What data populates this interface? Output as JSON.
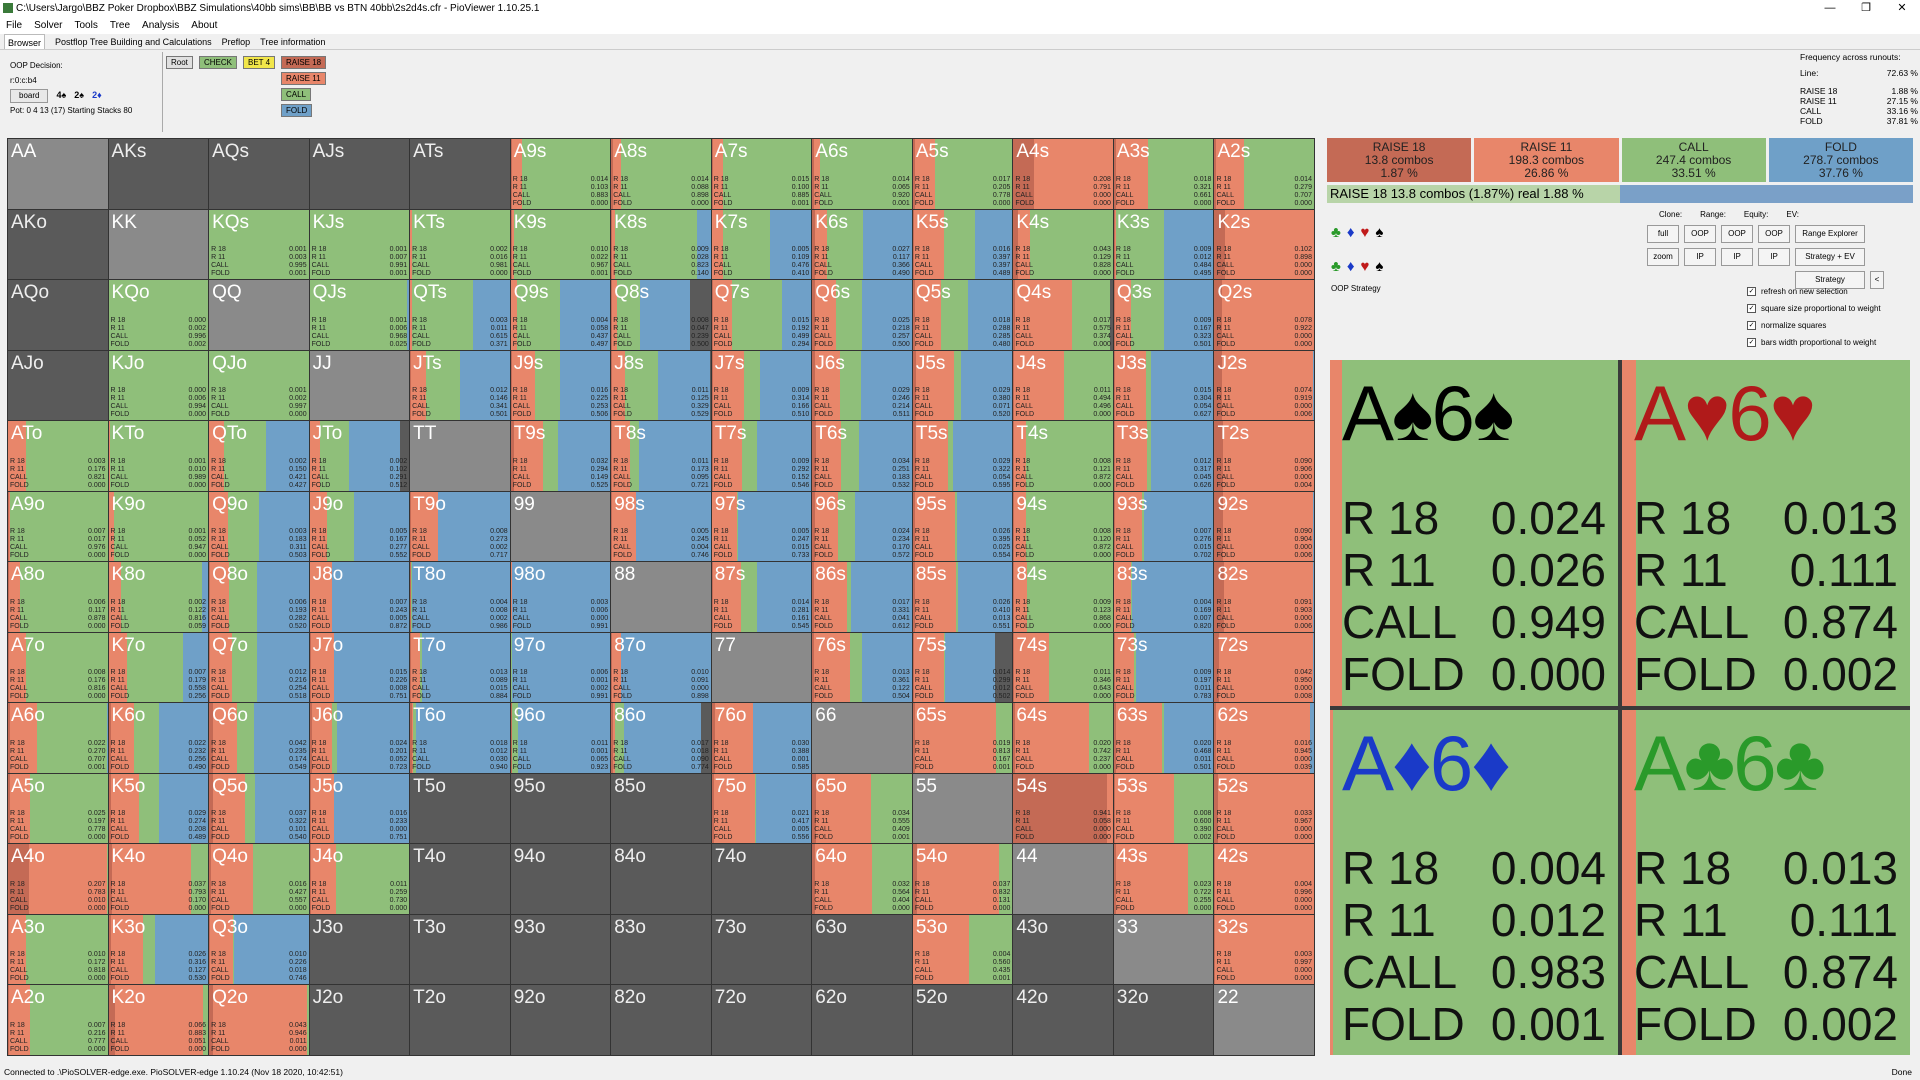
{
  "window": {
    "title": "C:\\Users\\Jargo\\BBZ Poker Dropbox\\BBZ Simulations\\40bb sims\\BB\\BB vs BTN 40bb\\2s2d4s.cfr - PioViewer 1.10.25.1",
    "buttons": [
      "—",
      "❐",
      "✕"
    ]
  },
  "menu": [
    "File",
    "Solver",
    "Tools",
    "Tree",
    "Analysis",
    "About"
  ],
  "tabs": [
    "Browser",
    "Postflop Tree Building and Calculations",
    "Preflop",
    "Tree information"
  ],
  "info": {
    "decision": "OOP Decision:",
    "line": "r:0:c:b4",
    "board_button": "board",
    "board_cards": [
      "4♠",
      "2♠",
      "2♦"
    ],
    "pot": "Pot: 0 4 13 (17) Starting Stacks 80"
  },
  "tree": {
    "root": "Root",
    "check": "CHECK",
    "bet": "BET 4",
    "raise18": "RAISE 18",
    "raise11": "RAISE 11",
    "call": "CALL",
    "fold": "FOLD"
  },
  "frequency": {
    "title": "Frequency across runouts:",
    "rows": [
      [
        "Line:",
        "72.63 %"
      ],
      [
        "RAISE 18",
        "1.88 %"
      ],
      [
        "RAISE 11",
        "27.15 %"
      ],
      [
        "CALL",
        "33.16 %"
      ],
      [
        "FOLD",
        "37.81 %"
      ]
    ]
  },
  "colors": {
    "raise18": "#c46a55",
    "raise11": "#e8866a",
    "call": "#8fbf7a",
    "fold": "#6fa0c8",
    "empty": "#5a5a5a",
    "pair": "#8a8a8a"
  },
  "combos": [
    {
      "name": "RAISE 18",
      "count": "13.8 combos",
      "pct": "1.87 %"
    },
    {
      "name": "RAISE 11",
      "count": "198.3 combos",
      "pct": "26.86 %"
    },
    {
      "name": "CALL",
      "count": "247.4 combos",
      "pct": "33.51 %"
    },
    {
      "name": "FOLD",
      "count": "278.7 combos",
      "pct": "37.76 %"
    }
  ],
  "selected_line": "RAISE 18   13.8 combos (1.87%) real  1.88 %",
  "suit_rows": [
    [
      "♣",
      "♦",
      "♥",
      "♠"
    ],
    [
      "♣",
      "♦",
      "♥",
      "♠"
    ]
  ],
  "controls": {
    "clone": "Clone:",
    "range": "Range:",
    "equity": "Equity:",
    "ev": "EV:",
    "buttons": [
      "full",
      "OOP",
      "OOP",
      "OOP",
      "Range Explorer",
      "zoom",
      "IP",
      "IP",
      "IP",
      "Strategy + EV",
      "Strategy",
      "<"
    ]
  },
  "oop_strategy": "OOP Strategy",
  "checks": [
    "refresh on new selection",
    "square size proportional to weight",
    "normalize squares",
    "bars width proportional to weight"
  ],
  "bigcards": [
    {
      "hand": "A♠6♠",
      "color": "#000000",
      "r18": "0.024",
      "r11": "0.026",
      "call": "0.949",
      "fold": "0.000"
    },
    {
      "hand": "A♥6♥",
      "color": "#b01a1a",
      "r18": "0.013",
      "r11": "0.111",
      "call": "0.874",
      "fold": "0.002"
    },
    {
      "hand": "A♦6♦",
      "color": "#1a3ac8",
      "r18": "0.004",
      "r11": "0.012",
      "call": "0.983",
      "fold": "0.001"
    },
    {
      "hand": "A♣6♣",
      "color": "#2a9a2a",
      "r18": "0.013",
      "r11": "0.111",
      "call": "0.874",
      "fold": "0.002"
    }
  ],
  "action_labels": [
    "R 18",
    "R 11",
    "CALL",
    "FOLD"
  ],
  "grid": [
    [
      "AA",
      "AKs",
      "AQs",
      "AJs",
      "ATs",
      "A9s",
      "A8s",
      "A7s",
      "A6s",
      "A5s",
      "A4s",
      "A3s",
      "A2s"
    ],
    [
      "AKo",
      "KK",
      "KQs",
      "KJs",
      "KTs",
      "K9s",
      "K8s",
      "K7s",
      "K6s",
      "K5s",
      "K4s",
      "K3s",
      "K2s"
    ],
    [
      "AQo",
      "KQo",
      "QQ",
      "QJs",
      "QTs",
      "Q9s",
      "Q8s",
      "Q7s",
      "Q6s",
      "Q5s",
      "Q4s",
      "Q3s",
      "Q2s"
    ],
    [
      "AJo",
      "KJo",
      "QJo",
      "JJ",
      "JTs",
      "J9s",
      "J8s",
      "J7s",
      "J6s",
      "J5s",
      "J4s",
      "J3s",
      "J2s"
    ],
    [
      "ATo",
      "KTo",
      "QTo",
      "JTo",
      "TT",
      "T9s",
      "T8s",
      "T7s",
      "T6s",
      "T5s",
      "T4s",
      "T3s",
      "T2s"
    ],
    [
      "A9o",
      "K9o",
      "Q9o",
      "J9o",
      "T9o",
      "99",
      "98s",
      "97s",
      "96s",
      "95s",
      "94s",
      "93s",
      "92s"
    ],
    [
      "A8o",
      "K8o",
      "Q8o",
      "J8o",
      "T8o",
      "98o",
      "88",
      "87s",
      "86s",
      "85s",
      "84s",
      "83s",
      "82s"
    ],
    [
      "A7o",
      "K7o",
      "Q7o",
      "J7o",
      "T7o",
      "97o",
      "87o",
      "77",
      "76s",
      "75s",
      "74s",
      "73s",
      "72s"
    ],
    [
      "A6o",
      "K6o",
      "Q6o",
      "J6o",
      "T6o",
      "96o",
      "86o",
      "76o",
      "66",
      "65s",
      "64s",
      "63s",
      "62s"
    ],
    [
      "A5o",
      "K5o",
      "Q5o",
      "J5o",
      "T5o",
      "95o",
      "85o",
      "75o",
      "65o",
      "55",
      "54s",
      "53s",
      "52s"
    ],
    [
      "A4o",
      "K4o",
      "Q4o",
      "J4o",
      "T4o",
      "94o",
      "84o",
      "74o",
      "64o",
      "54o",
      "44",
      "43s",
      "42s"
    ],
    [
      "A3o",
      "K3o",
      "Q3o",
      "J3o",
      "T3o",
      "93o",
      "83o",
      "73o",
      "63o",
      "53o",
      "43o",
      "33",
      "32s"
    ],
    [
      "A2o",
      "K2o",
      "Q2o",
      "J2o",
      "T2o",
      "92o",
      "82o",
      "72o",
      "62o",
      "52o",
      "42o",
      "32o",
      "22"
    ]
  ],
  "cells": {
    "A9s": [
      0.014,
      0.103,
      0.883,
      0.0
    ],
    "A8s": [
      0.014,
      0.088,
      0.898,
      0.0
    ],
    "A7s": [
      0.015,
      0.1,
      0.885,
      0.001
    ],
    "A6s": [
      0.014,
      0.065,
      0.92,
      0.001
    ],
    "A5s": [
      0.017,
      0.205,
      0.778,
      0.0
    ],
    "A4s": [
      0.208,
      0.791,
      0.0,
      0.0
    ],
    "A3s": [
      0.018,
      0.321,
      0.661,
      0.0
    ],
    "A2s": [
      0.014,
      0.279,
      0.707,
      0.0
    ],
    "KQs": [
      0.001,
      0.003,
      0.995,
      0.001
    ],
    "KJs": [
      0.001,
      0.007,
      0.991,
      0.001
    ],
    "KTs": [
      0.002,
      0.016,
      0.981,
      0.0
    ],
    "K9s": [
      0.01,
      0.022,
      0.967,
      0.001
    ],
    "K8s": [
      0.009,
      0.028,
      0.823,
      0.14
    ],
    "K7s": [
      0.005,
      0.109,
      0.476,
      0.41
    ],
    "K6s": [
      0.027,
      0.117,
      0.366,
      0.49
    ],
    "K5s": [
      0.016,
      0.397,
      0.397,
      0.489
    ],
    "K4s": [
      0.043,
      0.129,
      0.828,
      0.0
    ],
    "K3s": [
      0.009,
      0.012,
      0.484,
      0.495
    ],
    "K2s": [
      0.102,
      0.898,
      0.0,
      0.0
    ],
    "KQo": [
      0.0,
      0.002,
      0.996,
      0.002
    ],
    "QJs": [
      0.001,
      0.006,
      0.968,
      0.025
    ],
    "QTs": [
      0.003,
      0.011,
      0.615,
      0.371
    ],
    "Q9s": [
      0.004,
      0.058,
      0.437,
      0.497
    ],
    "Q8s": [
      0.008,
      0.047,
      0.239,
      0.5
    ],
    "Q7s": [
      0.015,
      0.192,
      0.499,
      0.294
    ],
    "Q6s": [
      0.025,
      0.218,
      0.257,
      0.5
    ],
    "Q5s": [
      0.018,
      0.288,
      0.285,
      0.48
    ],
    "Q4s": [
      0.017,
      0.575,
      0.374,
      0.0
    ],
    "Q3s": [
      0.009,
      0.167,
      0.323,
      0.501
    ],
    "Q2s": [
      0.078,
      0.922,
      0.0,
      0.0
    ],
    "KJo": [
      0.0,
      0.006,
      0.994,
      0.0
    ],
    "QJo": [
      0.001,
      0.002,
      0.997,
      0.0
    ],
    "JTs": [
      0.012,
      0.146,
      0.341,
      0.501
    ],
    "J9s": [
      0.016,
      0.225,
      0.253,
      0.506
    ],
    "J8s": [
      0.011,
      0.125,
      0.329,
      0.529
    ],
    "J7s": [
      0.009,
      0.314,
      0.166,
      0.51
    ],
    "J6s": [
      0.029,
      0.246,
      0.214,
      0.511
    ],
    "J5s": [
      0.029,
      0.38,
      0.071,
      0.52
    ],
    "J4s": [
      0.011,
      0.494,
      0.496,
      0.0
    ],
    "J3s": [
      0.015,
      0.304,
      0.054,
      0.627
    ],
    "J2s": [
      0.074,
      0.919,
      0.0,
      0.006
    ],
    "ATo": [
      0.003,
      0.176,
      0.821,
      0.0
    ],
    "KTo": [
      0.001,
      0.01,
      0.989,
      0.0
    ],
    "QTo": [
      0.002,
      0.15,
      0.421,
      0.427
    ],
    "JTo": [
      0.002,
      0.102,
      0.291,
      0.512
    ],
    "T9s": [
      0.032,
      0.294,
      0.149,
      0.525
    ],
    "T8s": [
      0.011,
      0.173,
      0.095,
      0.721
    ],
    "T7s": [
      0.009,
      0.292,
      0.152,
      0.546
    ],
    "T6s": [
      0.034,
      0.251,
      0.183,
      0.532
    ],
    "T5s": [
      0.029,
      0.322,
      0.054,
      0.595
    ],
    "T4s": [
      0.008,
      0.121,
      0.872,
      0.0
    ],
    "T3s": [
      0.012,
      0.317,
      0.045,
      0.626
    ],
    "T2s": [
      0.09,
      0.906,
      0.0,
      0.004
    ],
    "A9o": [
      0.007,
      0.017,
      0.976,
      0.0
    ],
    "K9o": [
      0.001,
      0.052,
      0.947,
      0.0
    ],
    "Q9o": [
      0.003,
      0.183,
      0.311,
      0.503
    ],
    "J9o": [
      0.005,
      0.167,
      0.277,
      0.552
    ],
    "T9o": [
      0.008,
      0.273,
      0.002,
      0.717
    ],
    "98s": [
      0.005,
      0.245,
      0.004,
      0.746
    ],
    "97s": [
      0.005,
      0.247,
      0.015,
      0.733
    ],
    "96s": [
      0.024,
      0.234,
      0.17,
      0.572
    ],
    "95s": [
      0.026,
      0.395,
      0.025,
      0.554
    ],
    "94s": [
      0.008,
      0.12,
      0.872,
      0.0
    ],
    "93s": [
      0.007,
      0.276,
      0.015,
      0.702
    ],
    "92s": [
      0.09,
      0.904,
      0.0,
      0.006
    ],
    "A8o": [
      0.006,
      0.117,
      0.878,
      0.0
    ],
    "K8o": [
      0.002,
      0.122,
      0.816,
      0.059
    ],
    "Q8o": [
      0.006,
      0.193,
      0.282,
      0.52
    ],
    "J8o": [
      0.007,
      0.243,
      0.005,
      0.872
    ],
    "T8o": [
      0.004,
      0.008,
      0.002,
      0.986
    ],
    "98o": [
      0.003,
      0.006,
      0.0,
      0.991
    ],
    "87s": [
      0.014,
      0.281,
      0.161,
      0.545
    ],
    "86s": [
      0.017,
      0.331,
      0.041,
      0.612
    ],
    "85s": [
      0.026,
      0.41,
      0.013,
      0.551
    ],
    "84s": [
      0.009,
      0.123,
      0.868,
      0.0
    ],
    "83s": [
      0.004,
      0.169,
      0.007,
      0.82
    ],
    "82s": [
      0.091,
      0.903,
      0.0,
      0.006
    ],
    "A7o": [
      0.008,
      0.176,
      0.816,
      0.0
    ],
    "K7o": [
      0.007,
      0.179,
      0.558,
      0.256
    ],
    "Q7o": [
      0.012,
      0.216,
      0.254,
      0.518
    ],
    "J7o": [
      0.015,
      0.226,
      0.008,
      0.751
    ],
    "T7o": [
      0.013,
      0.089,
      0.015,
      0.884
    ],
    "97o": [
      0.006,
      0.001,
      0.002,
      0.991
    ],
    "87o": [
      0.01,
      0.091,
      0.0,
      0.898
    ],
    "76s": [
      0.013,
      0.361,
      0.122,
      0.504
    ],
    "75s": [
      0.014,
      0.299,
      0.012,
      0.502
    ],
    "74s": [
      0.011,
      0.346,
      0.643,
      0.0
    ],
    "73s": [
      0.009,
      0.197,
      0.011,
      0.783
    ],
    "72s": [
      0.042,
      0.95,
      0.0,
      0.008
    ],
    "A6o": [
      0.022,
      0.27,
      0.707,
      0.001
    ],
    "K6o": [
      0.022,
      0.232,
      0.256,
      0.49
    ],
    "Q6o": [
      0.042,
      0.235,
      0.174,
      0.549
    ],
    "J6o": [
      0.024,
      0.201,
      0.052,
      0.723
    ],
    "T6o": [
      0.018,
      0.012,
      0.03,
      0.94
    ],
    "96o": [
      0.011,
      0.001,
      0.065,
      0.923
    ],
    "86o": [
      0.017,
      0.018,
      0.09,
      0.774
    ],
    "76o": [
      0.03,
      0.388,
      0.001,
      0.585
    ],
    "65s": [
      0.019,
      0.813,
      0.167,
      0.001
    ],
    "64s": [
      0.02,
      0.742,
      0.237,
      0.0
    ],
    "63s": [
      0.02,
      0.468,
      0.011,
      0.501
    ],
    "62s": [
      0.016,
      0.945,
      0.0,
      0.039
    ],
    "A5o": [
      0.025,
      0.197,
      0.778,
      0.0
    ],
    "K5o": [
      0.029,
      0.274,
      0.208,
      0.489
    ],
    "Q5o": [
      0.037,
      0.322,
      0.101,
      0.54
    ],
    "J5o": [
      0.016,
      0.233,
      0.0,
      0.751
    ],
    "75o": [
      0.021,
      0.417,
      0.005,
      0.556
    ],
    "65o": [
      0.034,
      0.555,
      0.409,
      0.001
    ],
    "54s": [
      0.941,
      0.058,
      0.0,
      0.0
    ],
    "53s": [
      0.008,
      0.6,
      0.39,
      0.002
    ],
    "52s": [
      0.033,
      0.967,
      0.0,
      0.0
    ],
    "A4o": [
      0.207,
      0.783,
      0.01,
      0.0
    ],
    "K4o": [
      0.037,
      0.793,
      0.17,
      0.0
    ],
    "Q4o": [
      0.016,
      0.427,
      0.557,
      0.0
    ],
    "J4o": [
      0.011,
      0.259,
      0.73,
      0.0
    ],
    "64o": [
      0.032,
      0.564,
      0.404,
      0.0
    ],
    "54o": [
      0.037,
      0.832,
      0.131,
      0.0
    ],
    "43s": [
      0.023,
      0.722,
      0.255,
      0.0
    ],
    "42s": [
      0.004,
      0.996,
      0.0,
      0.0
    ],
    "A3o": [
      0.01,
      0.172,
      0.818,
      0.0
    ],
    "K3o": [
      0.026,
      0.316,
      0.127,
      0.53
    ],
    "Q3o": [
      0.01,
      0.226,
      0.018,
      0.746
    ],
    "53o": [
      0.004,
      0.56,
      0.435,
      0.001
    ],
    "32s": [
      0.003,
      0.997,
      0.0,
      0.0
    ],
    "A2o": [
      0.007,
      0.216,
      0.777,
      0.0
    ],
    "K2o": [
      0.066,
      0.883,
      0.051,
      0.0
    ],
    "Q2o": [
      0.043,
      0.946,
      0.011,
      0.0
    ]
  },
  "statusbar": {
    "left": "Connected to .\\PioSOLVER-edge.exe. PioSOLVER-edge 1.10.24 (Nov 18 2020, 10:42:51)",
    "right": "Done"
  }
}
